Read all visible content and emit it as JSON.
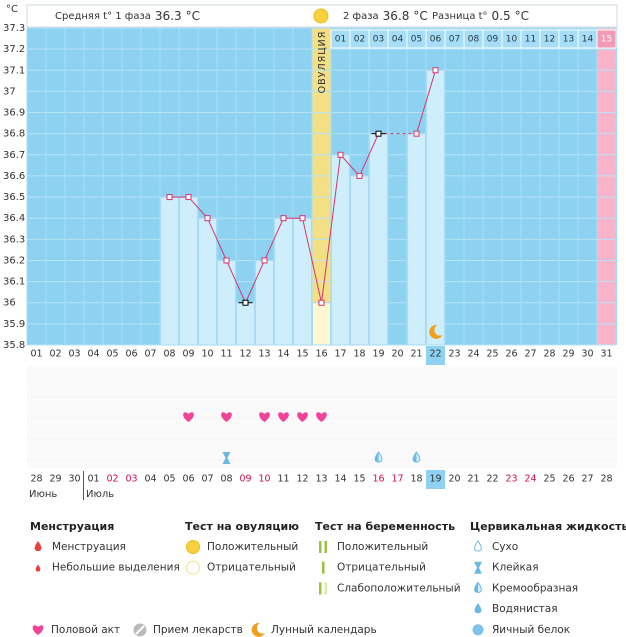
{
  "chart_data": {
    "type": "line",
    "y_label": "°C",
    "header": {
      "phase1_label": "Средняя t° 1 фаза",
      "phase1_value": 36.3,
      "phase2_label": "2 фаза",
      "phase2_value": 36.8,
      "diff_label": "Разница t°",
      "diff_value": 0.5,
      "unit": "°C"
    },
    "categories": [
      "01",
      "02",
      "03",
      "04",
      "05",
      "06",
      "07",
      "08",
      "09",
      "10",
      "11",
      "12",
      "13",
      "14",
      "15",
      "16",
      "17",
      "18",
      "19",
      "20",
      "21",
      "22",
      "23",
      "24",
      "25",
      "26",
      "27",
      "28",
      "29",
      "30",
      "31"
    ],
    "values": [
      null,
      null,
      null,
      null,
      null,
      null,
      null,
      36.5,
      36.5,
      36.4,
      36.2,
      36.0,
      36.2,
      36.4,
      36.4,
      36.0,
      36.7,
      36.6,
      36.8,
      null,
      36.8,
      37.1,
      null,
      null,
      null,
      null,
      null,
      null,
      null,
      null,
      null
    ],
    "color": "#d8336c",
    "ylim": [
      35.8,
      37.3
    ],
    "yticks": [
      35.8,
      35.9,
      36,
      36.1,
      36.2,
      36.3,
      36.4,
      36.5,
      36.6,
      36.7,
      36.8,
      36.9,
      37,
      37.1,
      37.2,
      37.3
    ],
    "grid": true,
    "excluded_days": [
      "12",
      "19"
    ],
    "ovulation": {
      "day": "16",
      "label": "ОВУЛЯЦИЯ"
    },
    "phase2_start_day": "17",
    "phase2_days": [
      "01",
      "02",
      "03",
      "04",
      "05",
      "06",
      "07",
      "08",
      "09",
      "10",
      "11",
      "12",
      "13",
      "14",
      "15"
    ],
    "pink_day": "31",
    "today": "22",
    "moon_days": [
      "22"
    ],
    "sex_days": [
      "09",
      "11",
      "13",
      "14",
      "15",
      "16"
    ],
    "cervical": [
      {
        "day": "11",
        "type": "Клейкая"
      },
      {
        "day": "19",
        "type": "Кремообразная"
      },
      {
        "day": "21",
        "type": "Кремообразная"
      }
    ],
    "dates": [
      "28",
      "29",
      "30",
      "01",
      "02",
      "03",
      "04",
      "05",
      "06",
      "07",
      "08",
      "09",
      "10",
      "11",
      "12",
      "13",
      "14",
      "15",
      "16",
      "17",
      "18",
      "19",
      "20",
      "21",
      "22",
      "23",
      "24",
      "25",
      "26",
      "27",
      "28"
    ],
    "months": [
      "Июнь",
      "Июль"
    ],
    "weekend_days": [
      "05",
      "06",
      "12",
      "13",
      "19",
      "20",
      "26",
      "27"
    ]
  },
  "legend": {
    "groups": [
      {
        "title": "Менструация",
        "items": [
          "Менструация",
          "Небольшие выделения"
        ]
      },
      {
        "title": "Тест на овуляцию",
        "items": [
          "Положительный",
          "Отрицательный"
        ]
      },
      {
        "title": "Тест на беременность",
        "items": [
          "Положительный",
          "Отрицательный",
          "Слабоположительный"
        ]
      },
      {
        "title": "Цервикальная жидкость",
        "items": [
          "Сухо",
          "Клейкая",
          "Кремообразная",
          "Водянистая",
          "Яичный белок"
        ]
      }
    ],
    "bottom": [
      "Половой акт",
      "Прием лекарств",
      "Лунный календарь"
    ]
  }
}
